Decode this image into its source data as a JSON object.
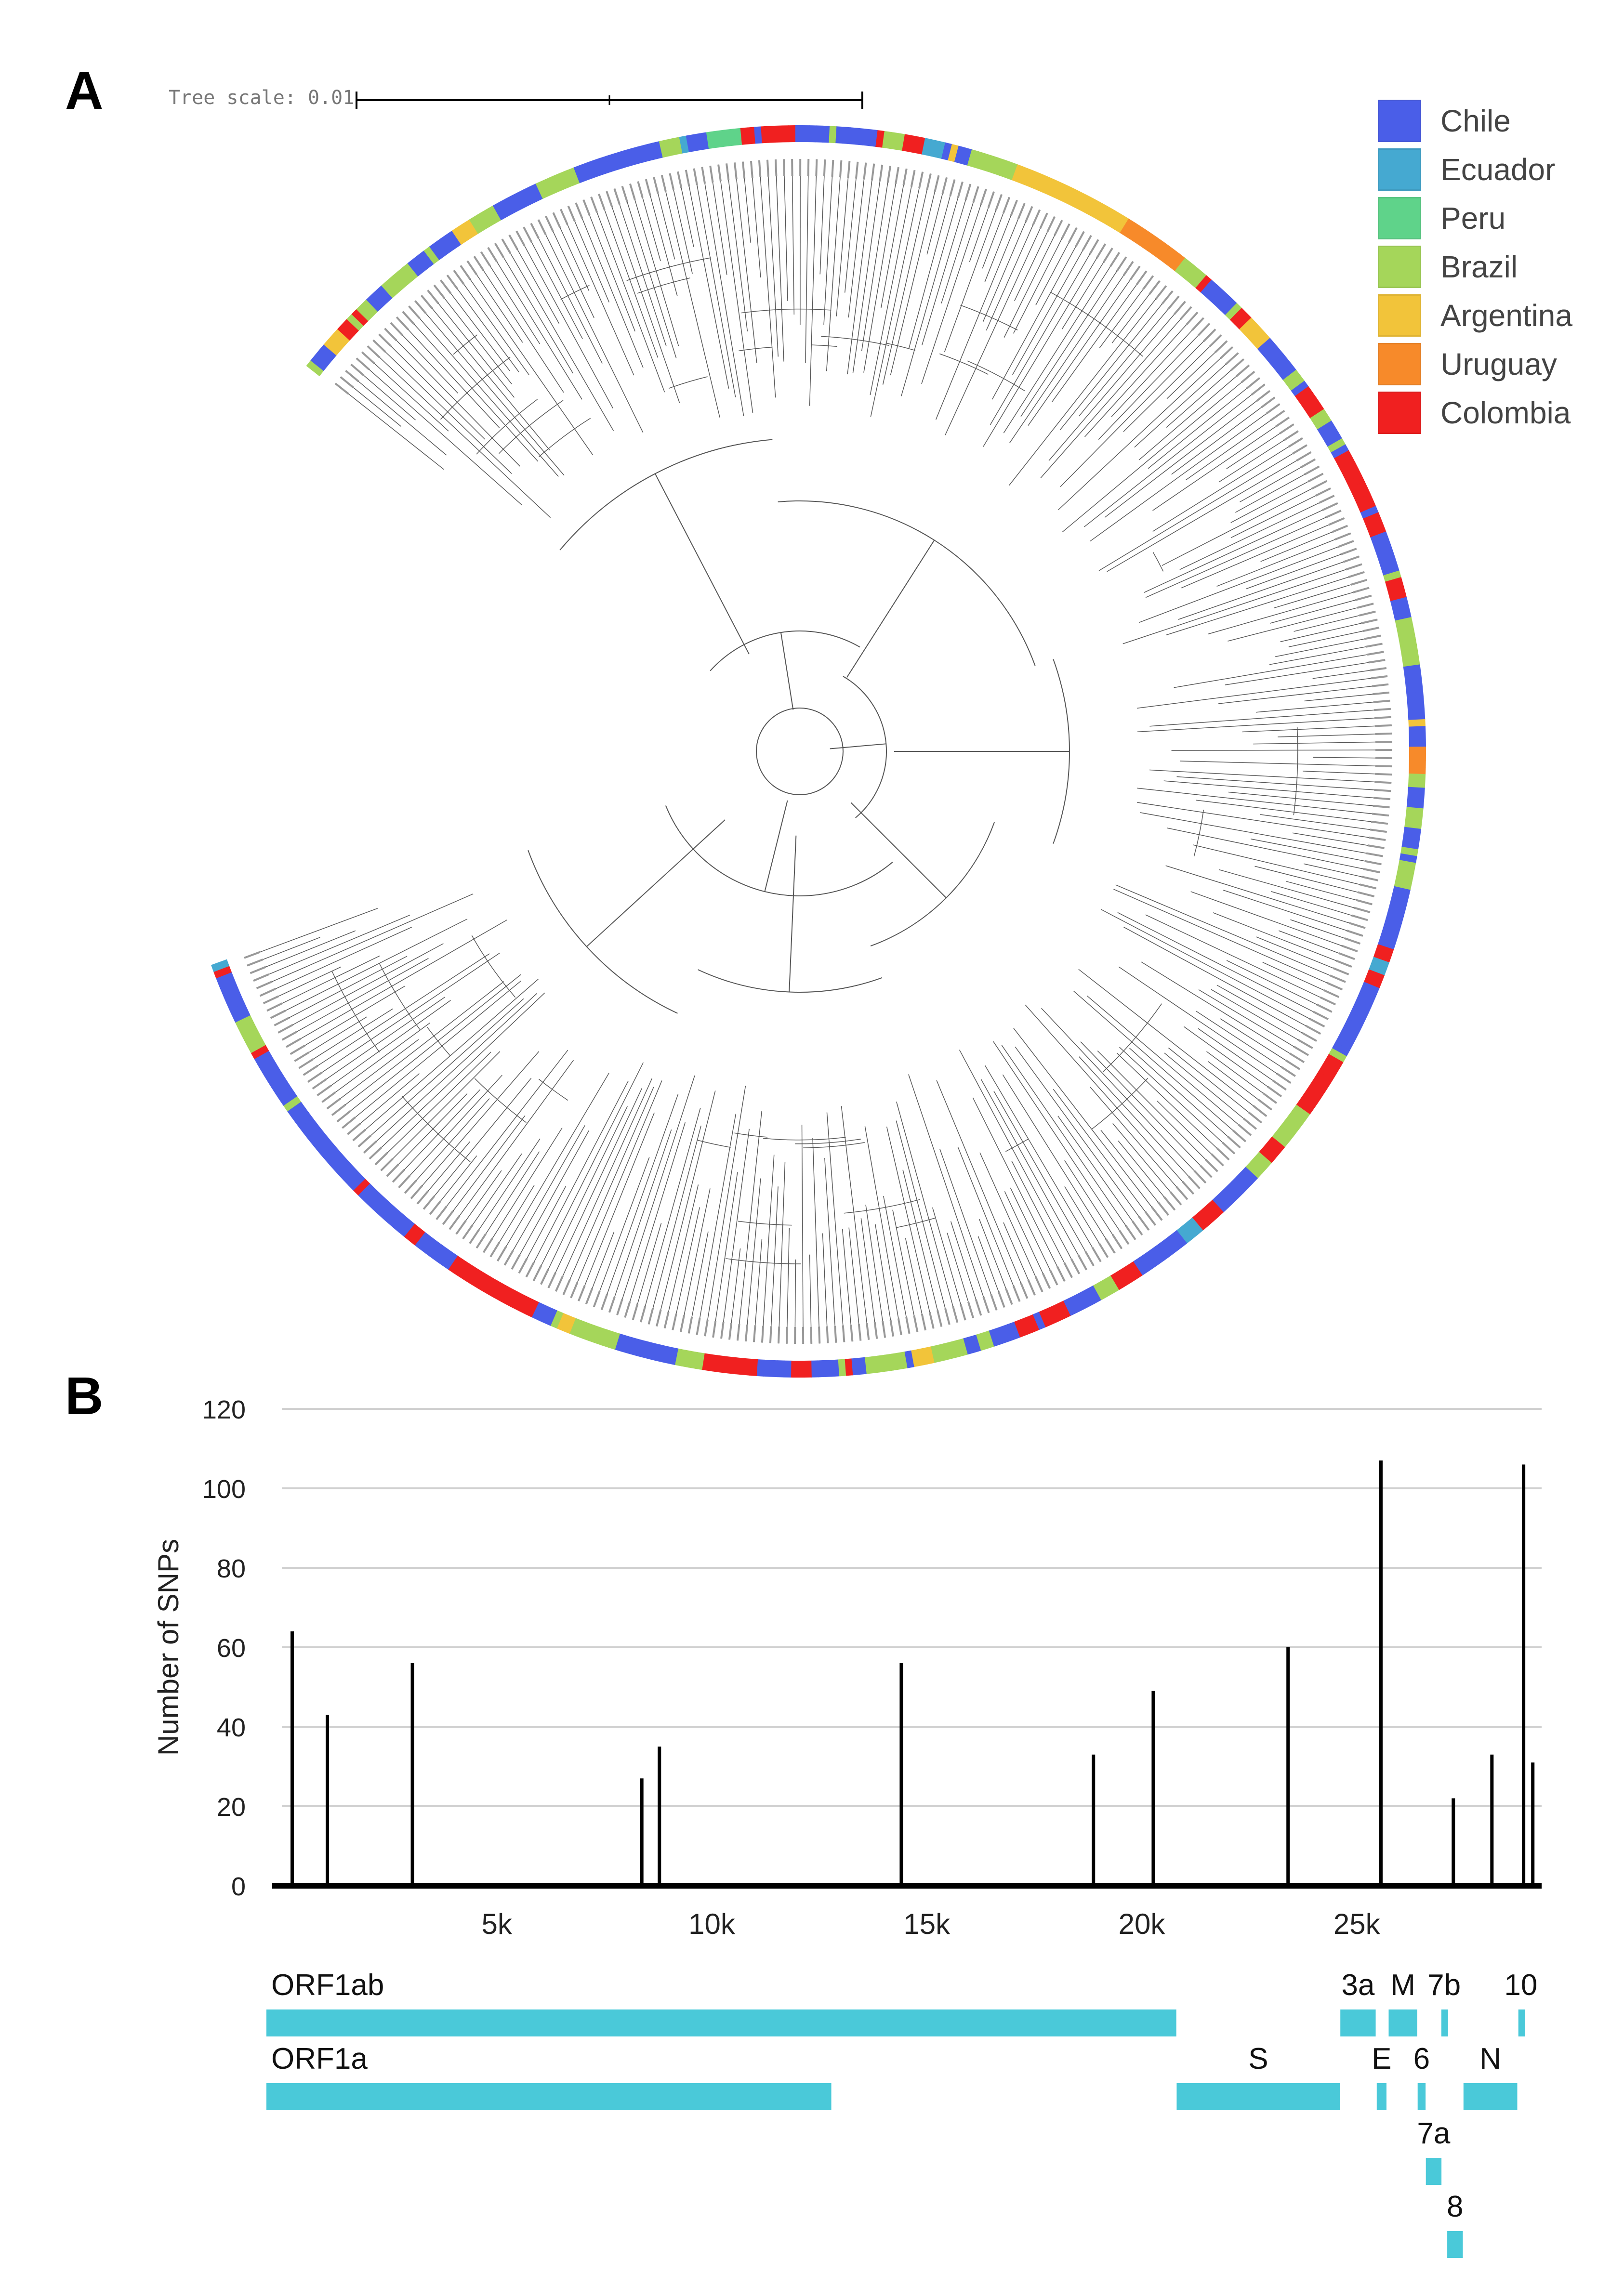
{
  "panels": {
    "a": "A",
    "b": "B"
  },
  "tree_scale_label": "Tree scale: 0.01",
  "legend": [
    {
      "label": "Chile",
      "color": "#4a5ee8"
    },
    {
      "label": "Ecuador",
      "color": "#45a9d1"
    },
    {
      "label": "Peru",
      "color": "#5fd38a"
    },
    {
      "label": "Brazil",
      "color": "#a5d65a"
    },
    {
      "label": "Argentina",
      "color": "#f2c43a"
    },
    {
      "label": "Uruguay",
      "color": "#f78a2a"
    },
    {
      "label": "Colombia",
      "color": "#f02020"
    }
  ],
  "chart_data": {
    "type": "bar",
    "title": "",
    "xlabel": "",
    "ylabel": "Number of SNPs",
    "ylim": [
      0,
      120
    ],
    "yticks": [
      0,
      20,
      40,
      60,
      80,
      100,
      120
    ],
    "xlim": [
      0,
      29300
    ],
    "xticks": [
      {
        "value": 5000,
        "label": "5k"
      },
      {
        "value": 10000,
        "label": "10k"
      },
      {
        "value": 15000,
        "label": "15k"
      },
      {
        "value": 20000,
        "label": "20k"
      },
      {
        "value": 25000,
        "label": "25k"
      }
    ],
    "bar_color": "#000000",
    "points": [
      {
        "position": 241,
        "value": 64
      },
      {
        "position": 1059,
        "value": 43
      },
      {
        "position": 3037,
        "value": 56
      },
      {
        "position": 8372,
        "value": 27
      },
      {
        "position": 8782,
        "value": 35
      },
      {
        "position": 14408,
        "value": 56
      },
      {
        "position": 18877,
        "value": 33
      },
      {
        "position": 20268,
        "value": 49
      },
      {
        "position": 23403,
        "value": 60
      },
      {
        "position": 25563,
        "value": 107
      },
      {
        "position": 27247,
        "value": 22
      },
      {
        "position": 28144,
        "value": 33
      },
      {
        "position": 28881,
        "value": 106
      },
      {
        "position": 29095,
        "value": 31
      }
    ]
  },
  "genes": {
    "color": "#4ac9d9",
    "items": [
      {
        "label": "ORF1ab",
        "start": 266,
        "end": 21555,
        "row": 0
      },
      {
        "label": "ORF1a",
        "start": 266,
        "end": 13483,
        "row": 1
      },
      {
        "label": "S",
        "start": 21563,
        "end": 25384,
        "row": 1
      },
      {
        "label": "3a",
        "start": 25393,
        "end": 26220,
        "row": 0
      },
      {
        "label": "E",
        "start": 26245,
        "end": 26472,
        "row": 1
      },
      {
        "label": "M",
        "start": 26523,
        "end": 27191,
        "row": 0
      },
      {
        "label": "6",
        "start": 27202,
        "end": 27387,
        "row": 1
      },
      {
        "label": "7a",
        "start": 27394,
        "end": 27759,
        "row": 2
      },
      {
        "label": "7b",
        "start": 27756,
        "end": 27887,
        "row": 0
      },
      {
        "label": "8",
        "start": 27894,
        "end": 28259,
        "row": 3
      },
      {
        "label": "N",
        "start": 28274,
        "end": 29533,
        "row": 1
      },
      {
        "label": "10",
        "start": 29558,
        "end": 29674,
        "row": 0
      }
    ]
  }
}
